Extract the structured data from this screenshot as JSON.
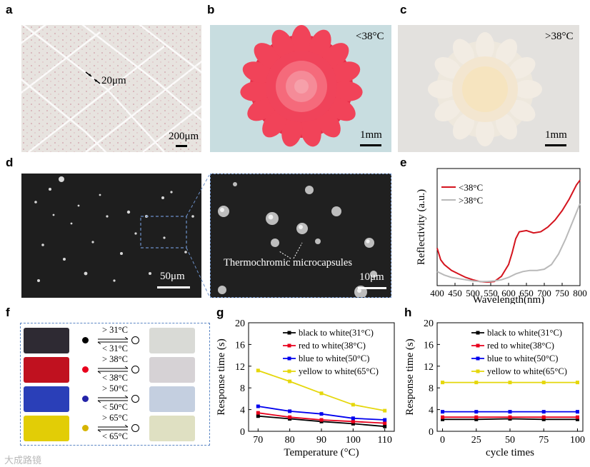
{
  "labels": {
    "a": "a",
    "b": "b",
    "c": "c",
    "d": "d",
    "e": "e",
    "f": "f",
    "g": "g",
    "h": "h"
  },
  "panel_a": {
    "scale_small": "20μm",
    "scale_big": "200μm"
  },
  "panel_b": {
    "temp": "<38°C",
    "scale": "1mm"
  },
  "panel_c": {
    "temp": ">38°C",
    "scale": "1mm"
  },
  "panel_d": {
    "scale_left": "50μm",
    "scale_right": "10μm",
    "annotation": "Thermochromic microcapsules"
  },
  "panel_f": {
    "rows": [
      {
        "up": "> 31°C",
        "down": "< 31°C",
        "dot": "#000000",
        "before": "#2e2a33",
        "after": "#d9dad6"
      },
      {
        "up": "> 38°C",
        "down": "< 38°C",
        "dot": "#e8001c",
        "before": "#c0111f",
        "after": "#d6d2d5"
      },
      {
        "up": "> 50°C",
        "down": "< 50°C",
        "dot": "#2323a8",
        "before": "#2a3fb8",
        "after": "#c4cfe0"
      },
      {
        "up": "> 65°C",
        "down": "< 65°C",
        "dot": "#d6b400",
        "before": "#e2cd06",
        "after": "#dfe0c2"
      }
    ]
  },
  "chart_data": [
    {
      "panel": "e",
      "type": "line",
      "xlabel": "Wavelength(nm)",
      "ylabel": "Reflectivity (a.u.)",
      "xlim": [
        400,
        800
      ],
      "xticks": [
        "400",
        "450",
        "500",
        "550",
        "600",
        "650",
        "700",
        "750",
        "800"
      ],
      "legend_position": "top-left",
      "series": [
        {
          "name": "<38°C",
          "color": "#d4141e",
          "x": [
            400,
            410,
            420,
            440,
            460,
            480,
            500,
            520,
            540,
            560,
            580,
            600,
            610,
            620,
            630,
            650,
            670,
            690,
            710,
            730,
            750,
            770,
            790,
            800
          ],
          "y": [
            0.32,
            0.22,
            0.18,
            0.13,
            0.1,
            0.07,
            0.05,
            0.035,
            0.03,
            0.035,
            0.08,
            0.18,
            0.28,
            0.4,
            0.46,
            0.47,
            0.45,
            0.46,
            0.5,
            0.56,
            0.64,
            0.74,
            0.86,
            0.9
          ]
        },
        {
          "name": ">38°C",
          "color": "#b9b9b9",
          "x": [
            400,
            420,
            440,
            460,
            480,
            500,
            520,
            540,
            560,
            580,
            600,
            620,
            640,
            660,
            680,
            700,
            720,
            740,
            760,
            780,
            800
          ],
          "y": [
            0.12,
            0.09,
            0.07,
            0.06,
            0.05,
            0.04,
            0.035,
            0.035,
            0.04,
            0.05,
            0.07,
            0.1,
            0.12,
            0.13,
            0.13,
            0.14,
            0.18,
            0.27,
            0.4,
            0.55,
            0.7
          ]
        }
      ]
    },
    {
      "panel": "g",
      "type": "line",
      "xlabel": "Temperature (°C)",
      "ylabel": "Response time (s)",
      "xlim": [
        67,
        113
      ],
      "ylim": [
        0,
        20
      ],
      "xticks": [
        70,
        80,
        90,
        100,
        110
      ],
      "yticks": [
        0,
        4,
        8,
        12,
        16,
        20
      ],
      "legend_position": "top-right",
      "series": [
        {
          "name": "black to white(31°C)",
          "color": "#000000",
          "x": [
            70,
            80,
            90,
            100,
            110
          ],
          "y": [
            2.8,
            2.3,
            1.8,
            1.4,
            0.9
          ]
        },
        {
          "name": "red to white(38°C)",
          "color": "#e8001c",
          "x": [
            70,
            80,
            90,
            100,
            110
          ],
          "y": [
            3.4,
            2.6,
            2.1,
            1.8,
            1.5
          ]
        },
        {
          "name": "blue to white(50°C)",
          "color": "#0000ee",
          "x": [
            70,
            80,
            90,
            100,
            110
          ],
          "y": [
            4.6,
            3.7,
            3.2,
            2.4,
            2.1
          ]
        },
        {
          "name": "yellow to white(65°C)",
          "color": "#e5d70b",
          "x": [
            70,
            80,
            90,
            100,
            110
          ],
          "y": [
            11.2,
            9.2,
            7.0,
            4.9,
            3.8
          ]
        }
      ]
    },
    {
      "panel": "h",
      "type": "line",
      "xlabel": "cycle times",
      "ylabel": "Response time (s)",
      "xlim": [
        -4,
        104
      ],
      "ylim": [
        0,
        20
      ],
      "xticks": [
        0,
        25,
        50,
        75,
        100
      ],
      "yticks": [
        0,
        4,
        8,
        12,
        16,
        20
      ],
      "legend_position": "top-right",
      "series": [
        {
          "name": "black to white(31°C)",
          "color": "#000000",
          "x": [
            0,
            25,
            50,
            75,
            100
          ],
          "y": [
            2.2,
            2.2,
            2.3,
            2.2,
            2.2
          ]
        },
        {
          "name": "red to white(38°C)",
          "color": "#e8001c",
          "x": [
            0,
            25,
            50,
            75,
            100
          ],
          "y": [
            2.6,
            2.6,
            2.6,
            2.6,
            2.6
          ]
        },
        {
          "name": "blue to white(50°C)",
          "color": "#0000ee",
          "x": [
            0,
            25,
            50,
            75,
            100
          ],
          "y": [
            3.6,
            3.6,
            3.6,
            3.6,
            3.6
          ]
        },
        {
          "name": "yellow to white(65°C)",
          "color": "#e5d70b",
          "x": [
            0,
            25,
            50,
            75,
            100
          ],
          "y": [
            9.0,
            9.0,
            9.0,
            9.0,
            9.0
          ]
        }
      ]
    }
  ],
  "watermark": "大成路镜"
}
